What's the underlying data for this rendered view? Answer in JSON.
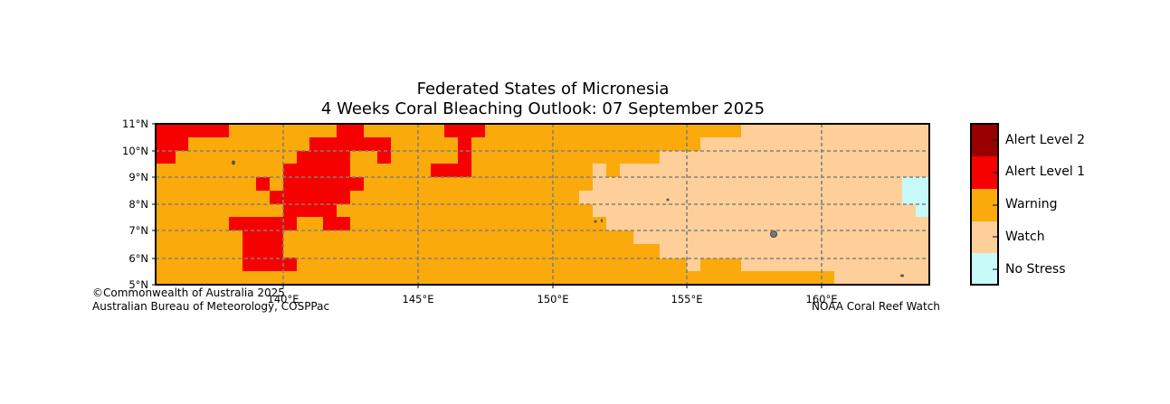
{
  "title_line1": "Federated States of Micronesia",
  "title_line2": "4 Weeks Coral Bleaching Outlook: 07 September 2025",
  "map": {
    "lon_range": [
      135,
      165
    ],
    "lat_range": [
      5,
      11
    ],
    "lon_ticks": [
      "140°E",
      "145°E",
      "150°E",
      "155°E",
      "160°E"
    ],
    "lat_ticks": [
      "5°N",
      "6°N",
      "7°N",
      "8°N",
      "9°N",
      "10°N",
      "11°N"
    ]
  },
  "legend": {
    "categories": [
      {
        "label": "Alert Level 2",
        "color": "#990000"
      },
      {
        "label": "Alert Level 1",
        "color": "#f60000"
      },
      {
        "label": "Warning",
        "color": "#fbaa0c"
      },
      {
        "label": "Watch",
        "color": "#ffcf99"
      },
      {
        "label": "No Stress",
        "color": "#c8fafa"
      }
    ]
  },
  "credits": {
    "left_line1": "©Commonwealth of Australia 2025",
    "left_line2": "Australian Bureau of Meteorology, COSPPac",
    "right": "NOAA Coral Reef Watch"
  }
}
